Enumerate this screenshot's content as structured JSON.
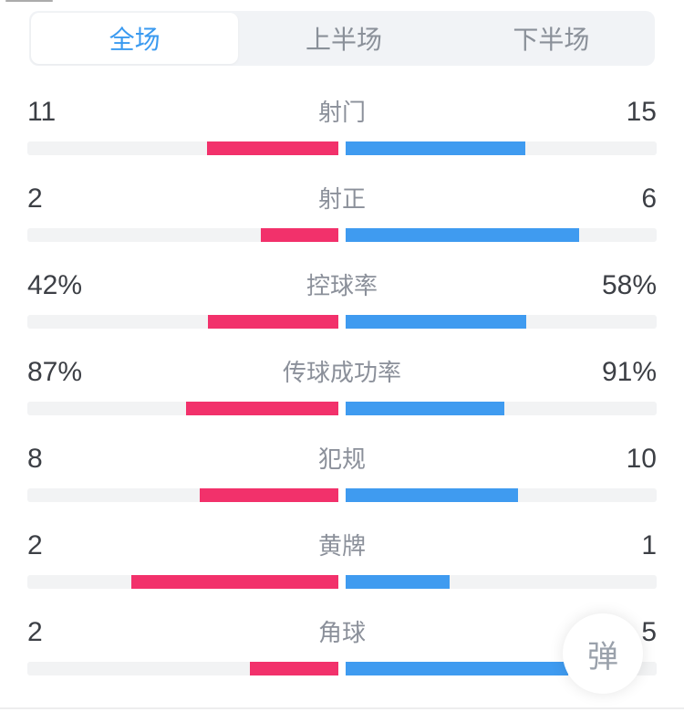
{
  "tabs": [
    {
      "label": "全场",
      "active": true
    },
    {
      "label": "上半场",
      "active": false
    },
    {
      "label": "下半场",
      "active": false
    }
  ],
  "stats": [
    {
      "label": "射门",
      "home": "11",
      "away": "15",
      "home_value": 11,
      "away_value": 15
    },
    {
      "label": "射正",
      "home": "2",
      "away": "6",
      "home_value": 2,
      "away_value": 6
    },
    {
      "label": "控球率",
      "home": "42%",
      "away": "58%",
      "home_value": 42,
      "away_value": 58
    },
    {
      "label": "传球成功率",
      "home": "87%",
      "away": "91%",
      "home_value": 87,
      "away_value": 91
    },
    {
      "label": "犯规",
      "home": "8",
      "away": "10",
      "home_value": 8,
      "away_value": 10
    },
    {
      "label": "黄牌",
      "home": "2",
      "away": "1",
      "home_value": 2,
      "away_value": 1
    },
    {
      "label": "角球",
      "home": "2",
      "away": "5",
      "home_value": 2,
      "away_value": 5
    }
  ],
  "danmaku_button": {
    "label": "弹"
  },
  "colors": {
    "home_bar": "#f2316b",
    "away_bar": "#3f9bf0",
    "track": "#f2f3f4",
    "tab_bar_bg": "#f1f3f6",
    "tab_active_text": "#3a9af0",
    "tab_inactive_text": "#8a9099",
    "value_text": "#3c3f45",
    "label_text": "#8b909a",
    "danmaku_text": "#9aa1ab"
  },
  "chart_data": {
    "type": "bar",
    "subtype": "paired-horizontal-versus",
    "categories": [
      "射门",
      "射正",
      "控球率",
      "传球成功率",
      "犯规",
      "黄牌",
      "角球"
    ],
    "series": [
      {
        "name": "home",
        "color": "#f2316b",
        "values": [
          11,
          2,
          42,
          87,
          8,
          2,
          2
        ],
        "labels": [
          "11",
          "2",
          "42%",
          "87%",
          "8",
          "2",
          "2"
        ]
      },
      {
        "name": "away",
        "color": "#3f9bf0",
        "values": [
          15,
          6,
          58,
          91,
          10,
          1,
          5
        ],
        "labels": [
          "15",
          "6",
          "58%",
          "91%",
          "10",
          "1",
          "5"
        ]
      }
    ],
    "layout": "bars grow outward from center; bar length = value share of row total",
    "legend": "none",
    "grid": false
  }
}
